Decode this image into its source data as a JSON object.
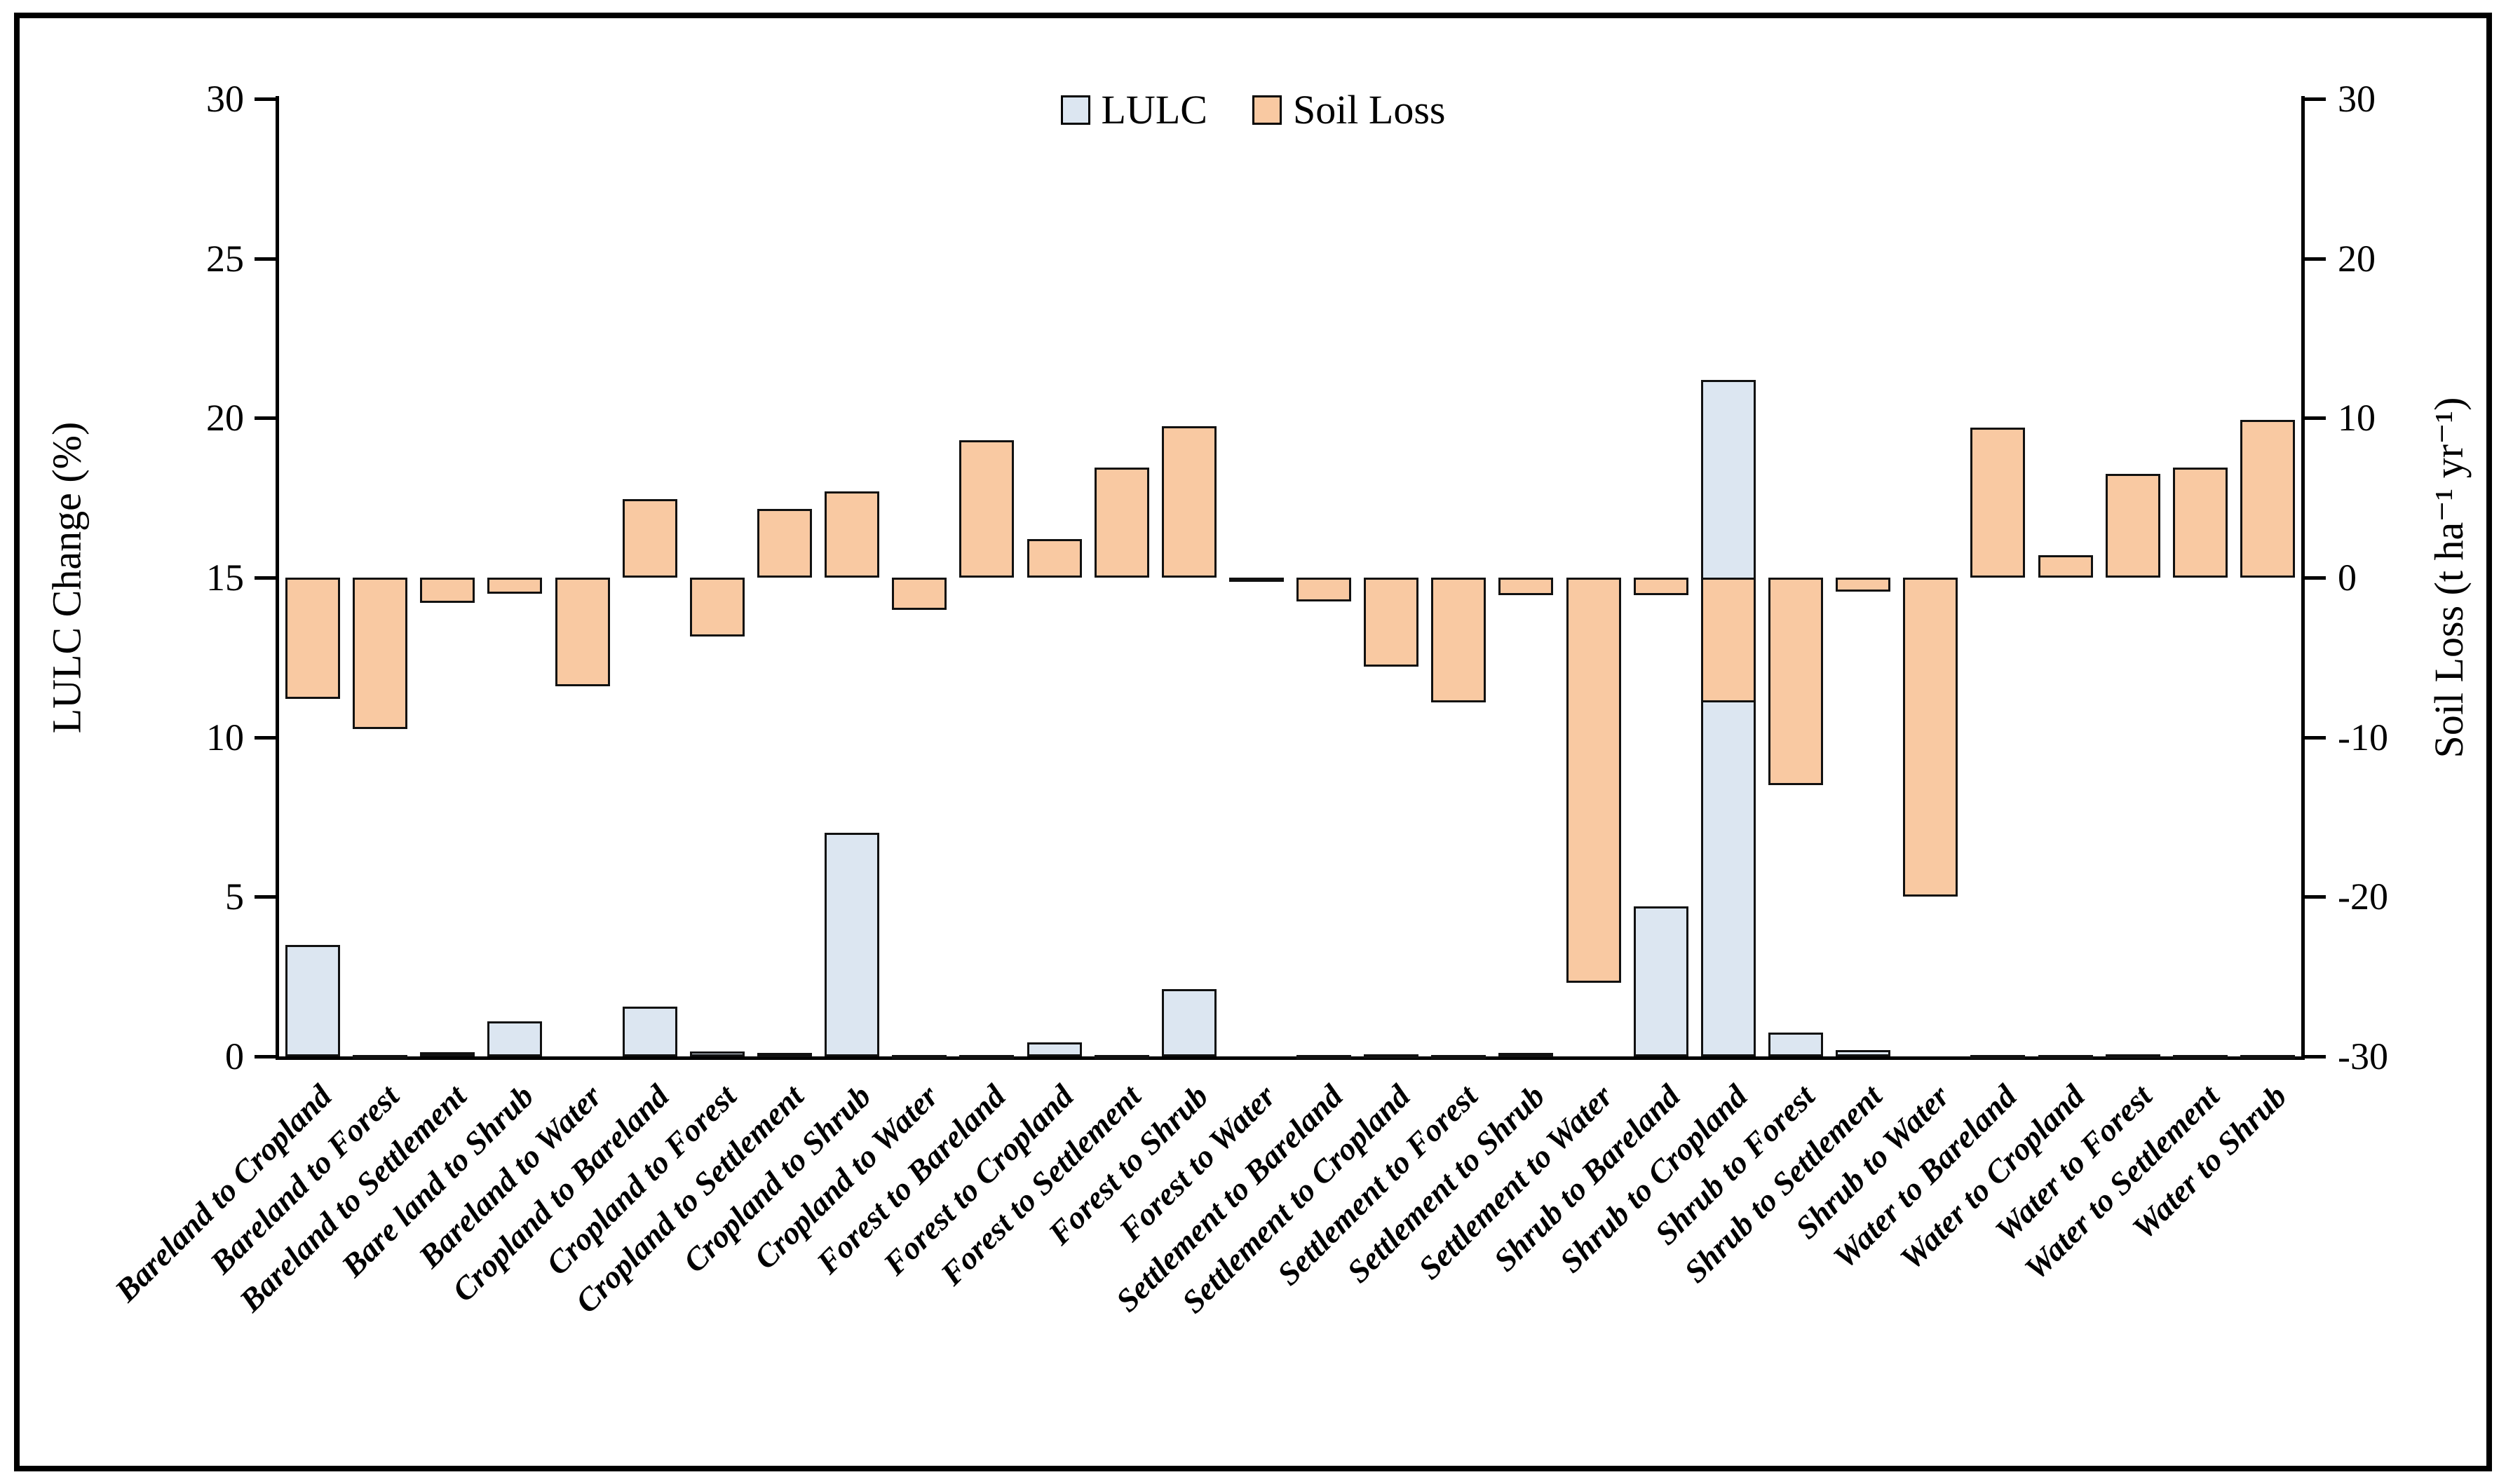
{
  "chart_data": {
    "type": "bar",
    "title": "",
    "legend_position": "top",
    "categories": [
      "Bareland to Cropland",
      "Bareland to Forest",
      "Bareland to Settlement",
      "Bare land to Shrub",
      "Bareland to Water",
      "Cropland to Bareland",
      "Cropland to Forest",
      "Cropland to Settlement",
      "Cropland to Shrub",
      "Cropland to Water",
      "Forest to Bareland",
      "Forest to Cropland",
      "Forest to Settlement",
      "Forest to Shrub",
      "Forest to Water",
      "Settlement to Bareland",
      "Settlement to Cropland",
      "Settlement to Forest",
      "Settlement to Shrub",
      "Settlement to Water",
      "Shrub to Bareland",
      "Shrub to Cropland",
      "Shrub to Forest",
      "Shrub to Settlement",
      "Shrub to Water",
      "Water to Bareland",
      "Water to Cropland",
      "Water to Forest",
      "Water to Settlement",
      "Water to Shrub"
    ],
    "series": [
      {
        "name": "LULC",
        "axis": "left",
        "color": "#dce6f1",
        "values": [
          3.5,
          0.02,
          0.13,
          1.1,
          0,
          1.55,
          0.15,
          0.12,
          7.0,
          0.02,
          0.05,
          0.45,
          0.02,
          2.1,
          0,
          0.03,
          0.07,
          0.02,
          0.1,
          0,
          4.7,
          21.2,
          0.75,
          0.2,
          0,
          0.03,
          0.02,
          0.07,
          0.03,
          0.02
        ]
      },
      {
        "name": "Soil Loss",
        "axis": "right",
        "color": "#f9c9a2",
        "values": [
          -7.6,
          -9.5,
          -1.6,
          -1.0,
          -6.8,
          4.9,
          -3.7,
          4.3,
          5.4,
          -2.0,
          8.6,
          2.4,
          6.9,
          9.5,
          0,
          -1.5,
          -5.6,
          -7.8,
          -1.1,
          -25.4,
          -1.1,
          -7.8,
          -13.0,
          -0.9,
          -20.0,
          9.4,
          1.4,
          6.5,
          6.9,
          9.9
        ]
      }
    ],
    "left_axis": {
      "label": "LULC Change (%)",
      "range": [
        0,
        30
      ],
      "ticks": [
        0,
        5,
        10,
        15,
        20,
        25,
        30
      ]
    },
    "right_axis": {
      "label": "Soil Loss (t ha⁻¹ yr⁻¹)",
      "range": [
        -30,
        30
      ],
      "ticks": [
        30,
        20,
        10,
        0,
        -10,
        -20,
        -30
      ]
    },
    "grid": false
  },
  "colors": {
    "bar_border": "#111111",
    "axis": "#000000",
    "background": "#ffffff"
  }
}
